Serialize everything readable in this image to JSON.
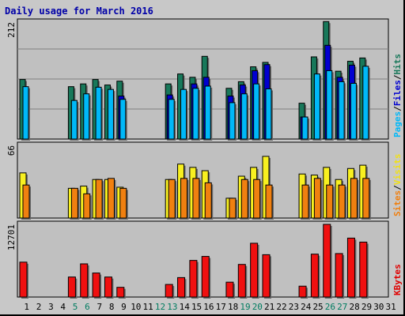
{
  "chart_data": {
    "type": "bar",
    "title": "Daily usage for March 2016",
    "categories": [
      "1",
      "2",
      "3",
      "4",
      "5",
      "6",
      "7",
      "8",
      "9",
      "10",
      "11",
      "12",
      "13",
      "14",
      "15",
      "16",
      "17",
      "18",
      "19",
      "20",
      "21",
      "22",
      "23",
      "24",
      "25",
      "26",
      "27",
      "28",
      "29",
      "30",
      "31"
    ],
    "weekend_days": [
      "5",
      "6",
      "12",
      "13",
      "19",
      "20",
      "26",
      "27"
    ],
    "panels": [
      {
        "id": "hits",
        "ymax_label": "212",
        "ymax": 212,
        "labels": [
          {
            "text": "Pages",
            "color": "#00b8f8"
          },
          {
            "text": "Files",
            "color": "#0000d0"
          },
          {
            "text": "Hits",
            "color": "#18785a"
          }
        ],
        "separator_color": "#000000",
        "series": [
          {
            "name": "Hits",
            "color": "#18785a",
            "values": [
              108,
              0,
              0,
              0,
              95,
              100,
              108,
              98,
              105,
              0,
              0,
              0,
              100,
              118,
              112,
              150,
              0,
              92,
              104,
              131,
              139,
              0,
              0,
              65,
              149,
              213,
              123,
              141,
              147,
              0,
              0
            ]
          },
          {
            "name": "Files",
            "color": "#0000d0",
            "values": [
              0,
              0,
              0,
              0,
              0,
              0,
              0,
              0,
              78,
              0,
              0,
              0,
              80,
              0,
              100,
              112,
              0,
              78,
              98,
              124,
              135,
              0,
              0,
              40,
              0,
              170,
              112,
              134,
              0,
              0,
              0
            ]
          },
          {
            "name": "Pages",
            "color": "#00b8f8",
            "values": [
              95,
              0,
              0,
              0,
              70,
              82,
              94,
              90,
              72,
              0,
              0,
              0,
              72,
              90,
              92,
              96,
              0,
              66,
              82,
              100,
              91,
              0,
              0,
              40,
              118,
              124,
              104,
              101,
              132,
              0,
              0
            ]
          }
        ]
      },
      {
        "id": "visits",
        "ymax_label": "66",
        "ymax": 66,
        "labels": [
          {
            "text": "Sites",
            "color": "#f08010"
          },
          {
            "text": "Visits",
            "color": "#f0e018"
          }
        ],
        "separator_color": "#000000",
        "series": [
          {
            "name": "Visits",
            "color": "#f8f020",
            "values": [
              41,
              0,
              0,
              0,
              27,
              29,
              35,
              35,
              28,
              0,
              0,
              0,
              35,
              49,
              46,
              43,
              0,
              18,
              38,
              46,
              56,
              0,
              0,
              40,
              39,
              46,
              35,
              45,
              48,
              0,
              0
            ]
          },
          {
            "name": "Sites",
            "color": "#f08010",
            "values": [
              30,
              0,
              0,
              0,
              27,
              22,
              35,
              36,
              27,
              0,
              0,
              0,
              35,
              36,
              36,
              32,
              0,
              18,
              35,
              35,
              30,
              0,
              0,
              30,
              36,
              30,
              30,
              36,
              36,
              0,
              0
            ]
          }
        ]
      },
      {
        "id": "kbytes",
        "ymax_label": "12701",
        "ymax": 12701,
        "labels": [
          {
            "text": "KBytes",
            "color": "#e00000"
          }
        ],
        "separator_color": "#000000",
        "series": [
          {
            "name": "KBytes",
            "color": "#f01010",
            "values": [
              6100,
              0,
              0,
              0,
              3500,
              5800,
              4200,
              3500,
              1700,
              0,
              0,
              0,
              2200,
              3400,
              6400,
              7100,
              0,
              2600,
              5700,
              9400,
              7400,
              0,
              0,
              1900,
              7500,
              12700,
              7600,
              10300,
              9600,
              0,
              0
            ]
          }
        ]
      }
    ],
    "x_label_color": "#000000",
    "weekend_label_color": "#007c60"
  }
}
